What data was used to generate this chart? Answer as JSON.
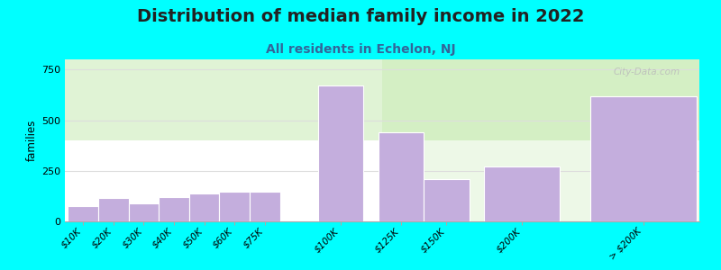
{
  "title": "Distribution of median family income in 2022",
  "subtitle": "All residents in Echelon, NJ",
  "ylabel": "families",
  "categories": [
    "$10K",
    "$20K",
    "$30K",
    "$40K",
    "$50K",
    "$60K",
    "$75K",
    "$100K",
    "$125K",
    "$150K",
    "$200K",
    "> $200K"
  ],
  "values": [
    75,
    115,
    90,
    120,
    140,
    145,
    145,
    670,
    440,
    210,
    270,
    620
  ],
  "bar_widths": [
    1,
    1,
    1,
    1,
    1,
    1,
    1,
    1,
    1,
    1,
    1,
    1
  ],
  "bar_gaps": [
    0,
    1,
    2,
    3,
    4,
    5,
    6,
    7,
    9,
    11,
    13,
    17
  ],
  "bar_color": "#C4AEDD",
  "bar_edgecolor": "#ffffff",
  "background_color": "#00FFFF",
  "yticks": [
    0,
    250,
    500,
    750
  ],
  "ylim": [
    0,
    800
  ],
  "title_fontsize": 14,
  "subtitle_fontsize": 10,
  "subtitle_color": "#336699",
  "watermark": "City-Data.com",
  "title_color": "#222222",
  "grid_color": "#dddddd",
  "grad_colors": [
    "#d4efc4",
    "#ffffff"
  ]
}
